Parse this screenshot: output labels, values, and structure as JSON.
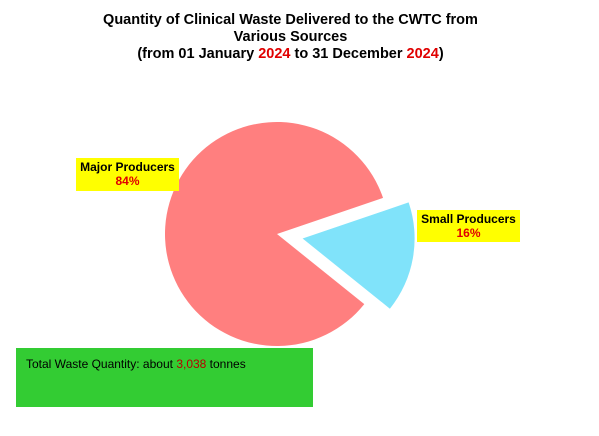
{
  "title": {
    "line1": "Quantity of Clinical Waste Delivered to the CWTC from",
    "line2": "Various Sources",
    "line3_prefix": "(from 01 January ",
    "line3_year_start": "2024",
    "line3_middle": " to 31 December ",
    "line3_year_end": "2024",
    "line3_suffix": ")"
  },
  "labels": {
    "major": {
      "name": "Major Producers",
      "percent": "84%"
    },
    "small": {
      "name": "Small Producers",
      "percent": "16%"
    }
  },
  "total": {
    "prefix": "Total Waste Quantity:  about ",
    "value": "3,038",
    "suffix": " tonnes"
  },
  "colors": {
    "major": "#ff7f7f",
    "small": "#80e3fa",
    "label_bg": "#ffff00",
    "highlight_red": "#e00000",
    "total_bg": "#33cc33"
  },
  "chart_data": {
    "type": "pie",
    "title": "Quantity of Clinical Waste Delivered to the CWTC from Various Sources (from 01 January 2024 to 31 December 2024)",
    "categories": [
      "Major Producers",
      "Small Producers"
    ],
    "values": [
      84,
      16
    ],
    "unit": "%",
    "exploded": [
      "Small Producers"
    ],
    "legend": "none"
  }
}
